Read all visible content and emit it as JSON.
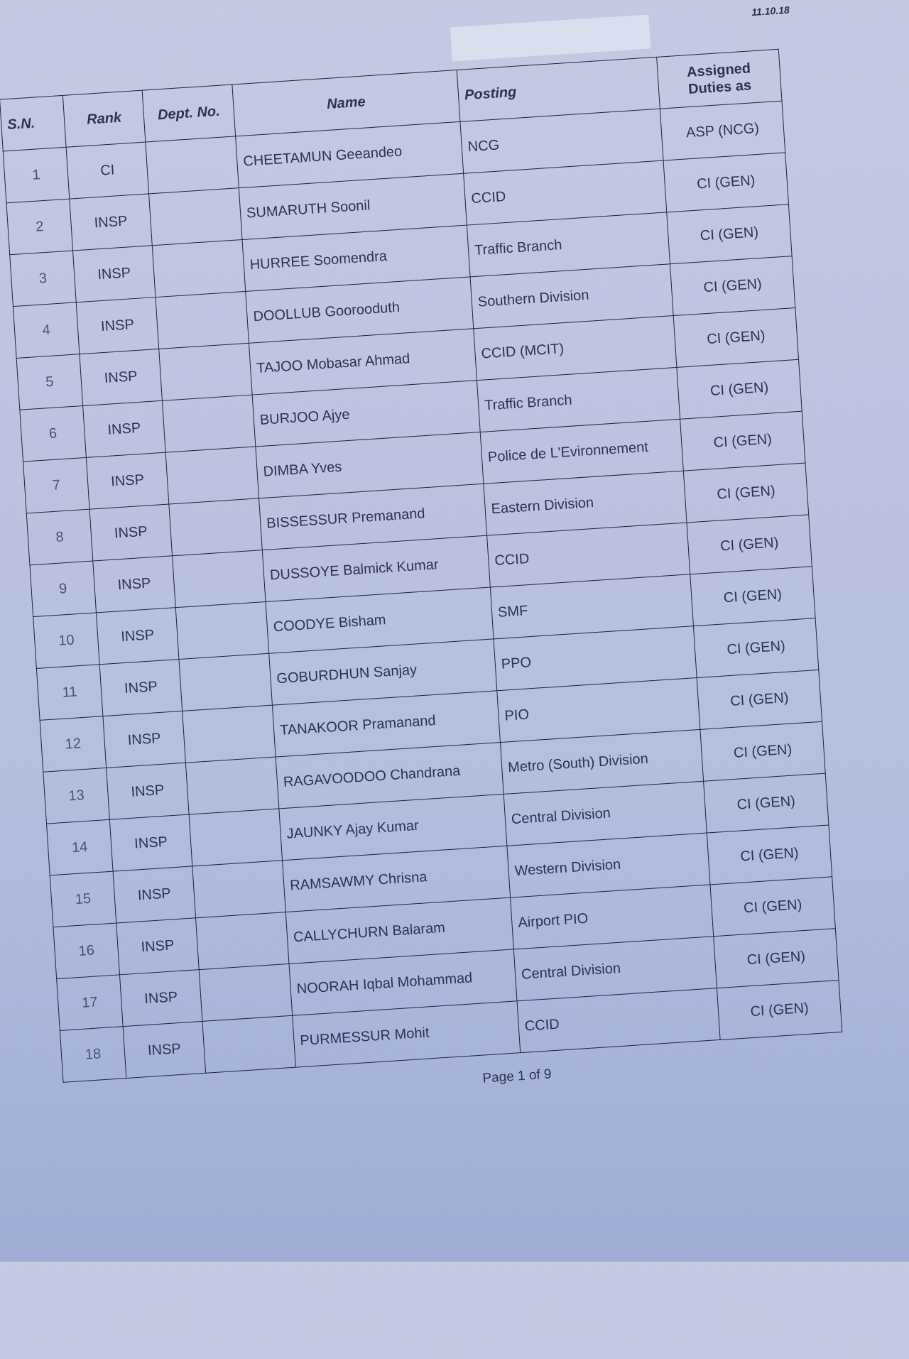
{
  "document": {
    "date": "11.10.18",
    "footer": "Page 1 of 9",
    "columns": [
      "S.N.",
      "Rank",
      "Dept. No.",
      "Name",
      "Posting",
      "Assigned Duties as"
    ],
    "rows": [
      {
        "sn": "1",
        "rank": "CI",
        "dept": "",
        "name": "CHEETAMUN Geeandeo",
        "posting": "NCG",
        "duty": "ASP (NCG)"
      },
      {
        "sn": "2",
        "rank": "INSP",
        "dept": "",
        "name": "SUMARUTH Soonil",
        "posting": "CCID",
        "duty": "CI (GEN)"
      },
      {
        "sn": "3",
        "rank": "INSP",
        "dept": "",
        "name": "HURREE Soomendra",
        "posting": "Traffic Branch",
        "duty": "CI (GEN)"
      },
      {
        "sn": "4",
        "rank": "INSP",
        "dept": "",
        "name": "DOOLLUB Goorooduth",
        "posting": "Southern Division",
        "duty": "CI (GEN)"
      },
      {
        "sn": "5",
        "rank": "INSP",
        "dept": "",
        "name": "TAJOO Mobasar Ahmad",
        "posting": "CCID (MCIT)",
        "duty": "CI (GEN)"
      },
      {
        "sn": "6",
        "rank": "INSP",
        "dept": "",
        "name": "BURJOO Ajye",
        "posting": "Traffic Branch",
        "duty": "CI (GEN)"
      },
      {
        "sn": "7",
        "rank": "INSP",
        "dept": "",
        "name": "DIMBA Yves",
        "posting": "Police de L'Evironnement",
        "duty": "CI (GEN)"
      },
      {
        "sn": "8",
        "rank": "INSP",
        "dept": "",
        "name": "BISSESSUR Premanand",
        "posting": "Eastern Division",
        "duty": "CI (GEN)"
      },
      {
        "sn": "9",
        "rank": "INSP",
        "dept": "",
        "name": "DUSSOYE Balmick Kumar",
        "posting": "CCID",
        "duty": "CI (GEN)"
      },
      {
        "sn": "10",
        "rank": "INSP",
        "dept": "",
        "name": "COODYE Bisham",
        "posting": "SMF",
        "duty": "CI (GEN)"
      },
      {
        "sn": "11",
        "rank": "INSP",
        "dept": "",
        "name": "GOBURDHUN Sanjay",
        "posting": "PPO",
        "duty": "CI (GEN)"
      },
      {
        "sn": "12",
        "rank": "INSP",
        "dept": "",
        "name": "TANAKOOR Pramanand",
        "posting": "PIO",
        "duty": "CI (GEN)"
      },
      {
        "sn": "13",
        "rank": "INSP",
        "dept": "",
        "name": "RAGAVOODOO Chandrana",
        "posting": "Metro (South) Division",
        "duty": "CI (GEN)"
      },
      {
        "sn": "14",
        "rank": "INSP",
        "dept": "",
        "name": "JAUNKY Ajay Kumar",
        "posting": "Central Division",
        "duty": "CI (GEN)"
      },
      {
        "sn": "15",
        "rank": "INSP",
        "dept": "",
        "name": "RAMSAWMY Chrisna",
        "posting": "Western Division",
        "duty": "CI (GEN)"
      },
      {
        "sn": "16",
        "rank": "INSP",
        "dept": "",
        "name": "CALLYCHURN Balaram",
        "posting": "Airport PIO",
        "duty": "CI (GEN)"
      },
      {
        "sn": "17",
        "rank": "INSP",
        "dept": "",
        "name": "NOORAH Iqbal Mohammad",
        "posting": "Central Division",
        "duty": "CI (GEN)"
      },
      {
        "sn": "18",
        "rank": "INSP",
        "dept": "",
        "name": "PURMESSUR Mohit",
        "posting": "CCID",
        "duty": "CI (GEN)"
      }
    ]
  }
}
